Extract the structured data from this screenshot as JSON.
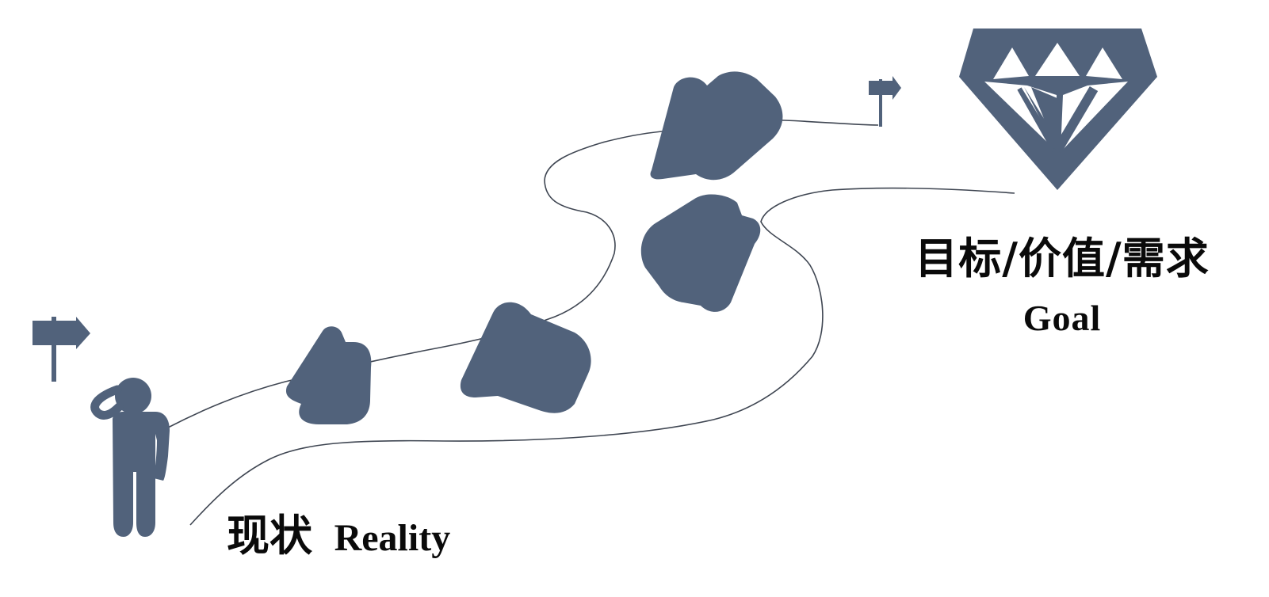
{
  "goal": {
    "label_zh": "目标/价值/需求",
    "label_en": "Goal"
  },
  "reality": {
    "label_zh": "现状",
    "label_en": "Reality"
  },
  "colors": {
    "shape_fill": "#51627b",
    "path_stroke": "#3f4652",
    "text": "#0a0a0a"
  },
  "icons": [
    "diamond-icon",
    "person-icon",
    "signpost-icon",
    "rock-icon"
  ]
}
